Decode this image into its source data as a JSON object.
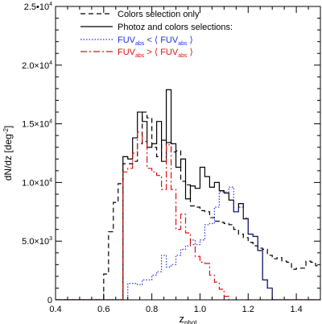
{
  "chart_data": {
    "type": "line",
    "title": "",
    "xlabel": "z",
    "xlabel_sub": "phot",
    "ylabel": "dN/dz [deg",
    "ylabel_sup": "-2",
    "ylabel_end": "]",
    "xlim": [
      0.4,
      1.5
    ],
    "ylim": [
      0,
      25000
    ],
    "grid": false,
    "legend": "top-right",
    "x_ticks": [
      {
        "value": 0.4,
        "label": "0.4"
      },
      {
        "value": 0.6,
        "label": "0.6"
      },
      {
        "value": 0.8,
        "label": "0.8"
      },
      {
        "value": 1.0,
        "label": "1.0"
      },
      {
        "value": 1.2,
        "label": "1.2"
      },
      {
        "value": 1.4,
        "label": "1.4"
      }
    ],
    "y_ticks": [
      {
        "value": 0,
        "label": "0"
      },
      {
        "value": 5000,
        "label": "5.0×10",
        "exp": "3"
      },
      {
        "value": 10000,
        "label": "1.0×10",
        "exp": "4"
      },
      {
        "value": 15000,
        "label": "1.5×10",
        "exp": "4"
      },
      {
        "value": 20000,
        "label": "2.0×10",
        "exp": "4"
      },
      {
        "value": 25000,
        "label": "2.5•10",
        "exp": "4"
      }
    ],
    "bin_edges": [
      0.4,
      0.42,
      0.44,
      0.46,
      0.48,
      0.5,
      0.52,
      0.54,
      0.56,
      0.58,
      0.6,
      0.62,
      0.64,
      0.66,
      0.68,
      0.7,
      0.72,
      0.74,
      0.76,
      0.78,
      0.8,
      0.82,
      0.84,
      0.86,
      0.88,
      0.9,
      0.92,
      0.94,
      0.96,
      0.98,
      1.0,
      1.02,
      1.04,
      1.06,
      1.08,
      1.1,
      1.12,
      1.14,
      1.16,
      1.18,
      1.2,
      1.22,
      1.24,
      1.26,
      1.28,
      1.3,
      1.32,
      1.34,
      1.36,
      1.38,
      1.4,
      1.42,
      1.44,
      1.46,
      1.48,
      1.5
    ],
    "series": [
      {
        "name": "Colors selection only",
        "color": "#000000",
        "dash": "6,4",
        "values": [
          0,
          0,
          0,
          0,
          0,
          0,
          0,
          0,
          0,
          0,
          2200,
          5800,
          8300,
          9900,
          11600,
          11600,
          11800,
          13300,
          16000,
          15500,
          13000,
          12200,
          13600,
          13400,
          12600,
          12700,
          10100,
          9800,
          8000,
          7900,
          7600,
          7500,
          7000,
          6700,
          6600,
          6500,
          6400,
          6000,
          5600,
          5300,
          4900,
          4600,
          4400,
          4300,
          3800,
          3500,
          3600,
          3300,
          3200,
          2600,
          2700,
          2700,
          3300,
          3200,
          2900
        ]
      },
      {
        "name": "Photoz and colors selections:",
        "color": "#000000",
        "dash": "",
        "values": [
          0,
          0,
          0,
          0,
          0,
          0,
          0,
          0,
          0,
          0,
          0,
          0,
          0,
          0,
          12200,
          12000,
          13800,
          16000,
          15200,
          13000,
          13300,
          15200,
          11800,
          17900,
          13300,
          11300,
          12000,
          8600,
          9700,
          9500,
          11300,
          10500,
          9600,
          10000,
          9300,
          9100,
          8500,
          7500,
          8200,
          6900,
          5600,
          5400,
          4200,
          1700,
          1000,
          0,
          0,
          0,
          0,
          0,
          0,
          0,
          0,
          0,
          0
        ]
      },
      {
        "name": "FUV",
        "name_sub": "abs",
        "relation": " < ⟨ ",
        "name2": "FUV",
        "name2_sub": "abs",
        "close": " ⟩",
        "color": "#2233dd",
        "dash": "1.5,2",
        "values": [
          0,
          0,
          0,
          0,
          0,
          0,
          0,
          0,
          0,
          0,
          0,
          0,
          0,
          0,
          0,
          1400,
          1400,
          1300,
          1700,
          1700,
          2100,
          2400,
          3800,
          2800,
          3000,
          3800,
          4300,
          4600,
          5100,
          4700,
          5100,
          6400,
          6500,
          7900,
          9200,
          9200,
          9600,
          7500,
          7900,
          7000,
          5600,
          5400,
          4200,
          1700,
          1000,
          0,
          0,
          0,
          0,
          0,
          0,
          0,
          0,
          0,
          0
        ]
      },
      {
        "name": "FUV",
        "name_sub": "abs",
        "relation": " > ⟨ ",
        "name2": "FUV",
        "name2_sub": "abs",
        "close": " ⟩",
        "color": "#dd1111",
        "dash": "8,3,2,3",
        "values": [
          0,
          0,
          0,
          0,
          0,
          0,
          0,
          0,
          0,
          0,
          0,
          0,
          0,
          0,
          10900,
          11200,
          12500,
          14300,
          13500,
          11200,
          10900,
          10600,
          9400,
          13200,
          9400,
          6000,
          7300,
          5700,
          4700,
          3700,
          3200,
          3100,
          2100,
          1500,
          900,
          300,
          0,
          0,
          0,
          0,
          0,
          0,
          0,
          0,
          0,
          0,
          0,
          0,
          0,
          0,
          0,
          0,
          0,
          0,
          0
        ]
      }
    ]
  }
}
